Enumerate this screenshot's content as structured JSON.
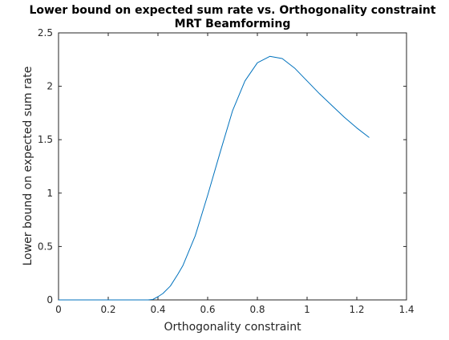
{
  "chart_data": {
    "type": "line",
    "title": "Lower bound on expected sum rate vs. Orthogonality constraint",
    "subtitle": "MRT Beamforming",
    "xlabel": "Orthogonality constraint",
    "ylabel": "Lower bound on expected sum rate",
    "xlim": [
      0,
      1.4
    ],
    "ylim": [
      0,
      2.5
    ],
    "x_ticks": [
      0,
      0.2,
      0.4,
      0.6,
      0.8,
      1,
      1.2,
      1.4
    ],
    "x_tick_labels": [
      "0",
      "0.2",
      "0.4",
      "0.6",
      "0.8",
      "1",
      "1.2",
      "1.4"
    ],
    "y_ticks": [
      0,
      0.5,
      1,
      1.5,
      2,
      2.5
    ],
    "y_tick_labels": [
      "0",
      "0.5",
      "1",
      "1.5",
      "2",
      "2.5"
    ],
    "grid": false,
    "line_color": "#0072BD",
    "axis_color": "#262626",
    "series": [
      {
        "x": [
          0,
          0.1,
          0.2,
          0.3,
          0.36,
          0.38,
          0.4,
          0.42,
          0.45,
          0.48,
          0.5,
          0.55,
          0.6,
          0.65,
          0.7,
          0.75,
          0.8,
          0.85,
          0.9,
          0.95,
          1.0,
          1.05,
          1.1,
          1.15,
          1.2,
          1.25
        ],
        "y": [
          0,
          0,
          0,
          0,
          0,
          0.005,
          0.03,
          0.06,
          0.13,
          0.24,
          0.32,
          0.6,
          0.98,
          1.38,
          1.77,
          2.05,
          2.22,
          2.28,
          2.26,
          2.17,
          2.05,
          1.93,
          1.82,
          1.71,
          1.61,
          1.52
        ]
      }
    ]
  }
}
